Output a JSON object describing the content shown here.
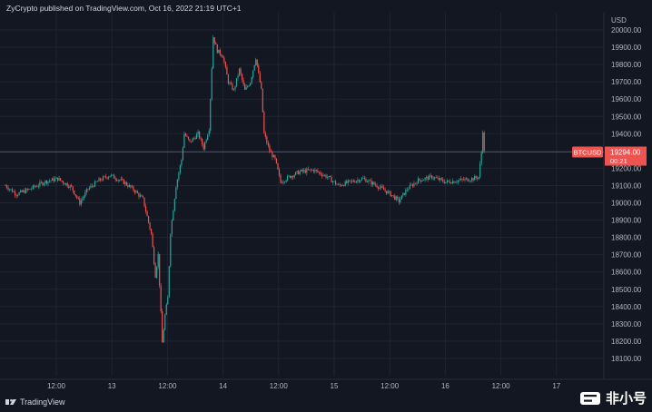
{
  "header": {
    "attribution": "ZyCrypto published on TradingView.com, Oct 16, 2022 21:19 UTC+1"
  },
  "footer": {
    "logo_text": "TradingView"
  },
  "brand": {
    "text": "非小号"
  },
  "price_tag": {
    "symbol": "BTCUSD",
    "price": "19294.00",
    "countdown": "00:21"
  },
  "colors": {
    "background": "#131722",
    "up": "#26a69a",
    "down": "#ef5350",
    "grid": "#1f2433",
    "price_line": "#ef5350"
  },
  "chart_data": {
    "type": "candlestick",
    "title": "",
    "y_unit": "USD",
    "ylim": [
      18000,
      20100
    ],
    "y_ticks": [
      20000,
      19900,
      19800,
      19700,
      19600,
      19500,
      19400,
      19300,
      19200,
      19100,
      19000,
      18900,
      18800,
      18700,
      18600,
      18500,
      18400,
      18300,
      18200,
      18100
    ],
    "x_ticks": [
      "12:00",
      "13",
      "12:00",
      "14",
      "12:00",
      "15",
      "12:00",
      "16",
      "12:00",
      "17"
    ],
    "grid": true,
    "current_price": 19294.0,
    "price_path": [
      {
        "x": 0,
        "y": 19100
      },
      {
        "x": 4,
        "y": 19050
      },
      {
        "x": 9,
        "y": 19080
      },
      {
        "x": 14,
        "y": 19120
      },
      {
        "x": 19,
        "y": 19140
      },
      {
        "x": 24,
        "y": 19090
      },
      {
        "x": 27,
        "y": 19000
      },
      {
        "x": 30,
        "y": 19080
      },
      {
        "x": 34,
        "y": 19130
      },
      {
        "x": 38,
        "y": 19160
      },
      {
        "x": 43,
        "y": 19120
      },
      {
        "x": 47,
        "y": 19070
      },
      {
        "x": 50,
        "y": 19020
      },
      {
        "x": 53,
        "y": 18820
      },
      {
        "x": 54.5,
        "y": 18580
      },
      {
        "x": 55.5,
        "y": 18700
      },
      {
        "x": 57,
        "y": 18190
      },
      {
        "x": 58,
        "y": 18350
      },
      {
        "x": 59,
        "y": 18450
      },
      {
        "x": 60,
        "y": 18830
      },
      {
        "x": 62,
        "y": 19100
      },
      {
        "x": 64,
        "y": 19250
      },
      {
        "x": 65,
        "y": 19400
      },
      {
        "x": 67,
        "y": 19350
      },
      {
        "x": 70,
        "y": 19400
      },
      {
        "x": 72,
        "y": 19320
      },
      {
        "x": 74,
        "y": 19430
      },
      {
        "x": 75.5,
        "y": 19960
      },
      {
        "x": 77,
        "y": 19880
      },
      {
        "x": 79,
        "y": 19850
      },
      {
        "x": 81,
        "y": 19700
      },
      {
        "x": 83,
        "y": 19650
      },
      {
        "x": 85,
        "y": 19770
      },
      {
        "x": 87,
        "y": 19650
      },
      {
        "x": 89,
        "y": 19700
      },
      {
        "x": 91,
        "y": 19840
      },
      {
        "x": 93,
        "y": 19650
      },
      {
        "x": 94,
        "y": 19400
      },
      {
        "x": 96,
        "y": 19300
      },
      {
        "x": 98,
        "y": 19250
      },
      {
        "x": 100,
        "y": 19120
      },
      {
        "x": 103,
        "y": 19150
      },
      {
        "x": 107,
        "y": 19180
      },
      {
        "x": 112,
        "y": 19190
      },
      {
        "x": 117,
        "y": 19150
      },
      {
        "x": 121,
        "y": 19100
      },
      {
        "x": 125,
        "y": 19120
      },
      {
        "x": 130,
        "y": 19140
      },
      {
        "x": 135,
        "y": 19100
      },
      {
        "x": 140,
        "y": 19050
      },
      {
        "x": 143,
        "y": 19010
      },
      {
        "x": 146,
        "y": 19080
      },
      {
        "x": 150,
        "y": 19130
      },
      {
        "x": 155,
        "y": 19150
      },
      {
        "x": 160,
        "y": 19120
      },
      {
        "x": 165,
        "y": 19130
      },
      {
        "x": 170,
        "y": 19140
      },
      {
        "x": 172,
        "y": 19150
      },
      {
        "x": 173,
        "y": 19290
      },
      {
        "x": 173.5,
        "y": 19420
      },
      {
        "x": 174,
        "y": 19294
      }
    ]
  }
}
